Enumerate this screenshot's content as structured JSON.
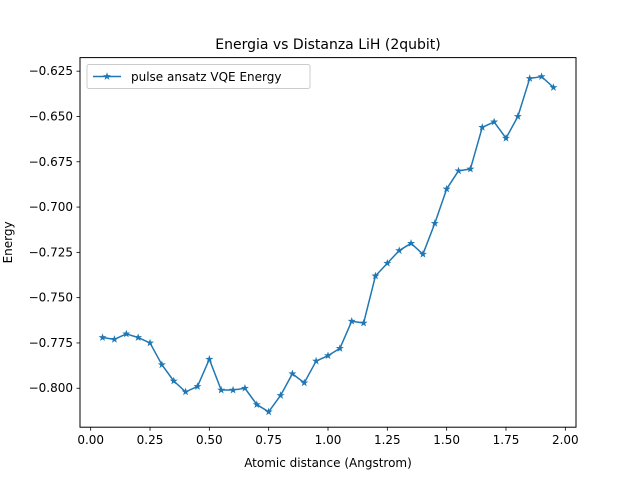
{
  "chart_data": {
    "type": "line",
    "title": "Energia vs Distanza LiH (2qubit)",
    "xlabel": "Atomic distance (Angstrom)",
    "ylabel": "Energy",
    "xlim": [
      -0.045,
      2.045
    ],
    "ylim": [
      -0.8215,
      -0.6175
    ],
    "xticks": [
      0.0,
      0.25,
      0.5,
      0.75,
      1.0,
      1.25,
      1.5,
      1.75,
      2.0
    ],
    "xtick_labels": [
      "0.00",
      "0.25",
      "0.50",
      "0.75",
      "1.00",
      "1.25",
      "1.50",
      "1.75",
      "2.00"
    ],
    "yticks": [
      -0.8,
      -0.775,
      -0.75,
      -0.725,
      -0.7,
      -0.675,
      -0.65,
      -0.625
    ],
    "ytick_labels": [
      "−0.800",
      "−0.775",
      "−0.750",
      "−0.725",
      "−0.700",
      "−0.675",
      "−0.650",
      "−0.625"
    ],
    "grid": false,
    "legend_position": "upper-left",
    "series": [
      {
        "name": "pulse ansatz VQE Energy",
        "color": "#1f77b4",
        "marker": "star",
        "x": [
          0.05,
          0.1,
          0.15,
          0.2,
          0.25,
          0.3,
          0.35,
          0.4,
          0.45,
          0.5,
          0.55,
          0.6,
          0.65,
          0.7,
          0.75,
          0.8,
          0.85,
          0.9,
          0.95,
          1.0,
          1.05,
          1.1,
          1.15,
          1.2,
          1.25,
          1.3,
          1.35,
          1.4,
          1.45,
          1.5,
          1.55,
          1.6,
          1.65,
          1.7,
          1.75,
          1.8,
          1.85,
          1.9,
          1.95
        ],
        "y": [
          -0.772,
          -0.773,
          -0.77,
          -0.772,
          -0.775,
          -0.787,
          -0.796,
          -0.802,
          -0.799,
          -0.784,
          -0.801,
          -0.801,
          -0.8,
          -0.809,
          -0.813,
          -0.804,
          -0.792,
          -0.797,
          -0.785,
          -0.782,
          -0.778,
          -0.763,
          -0.764,
          -0.738,
          -0.731,
          -0.724,
          -0.72,
          -0.726,
          -0.709,
          -0.69,
          -0.68,
          -0.679,
          -0.656,
          -0.653,
          -0.662,
          -0.65,
          -0.629,
          -0.628,
          -0.634
        ]
      }
    ]
  }
}
